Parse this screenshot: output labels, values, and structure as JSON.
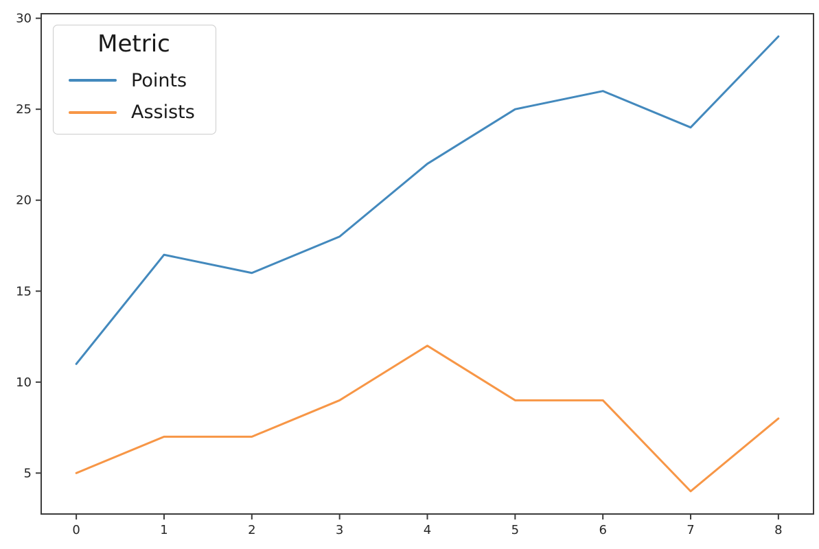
{
  "figure": {
    "background_color": "#ffffff",
    "spine_color": "#3b3b3b",
    "tick_label_color": "#262626"
  },
  "chart_data": {
    "type": "line",
    "x": [
      0,
      1,
      2,
      3,
      4,
      5,
      6,
      7,
      8
    ],
    "series": [
      {
        "name": "Points",
        "color": "#4389bd",
        "values": [
          11,
          17,
          16,
          18,
          22,
          25,
          26,
          24,
          29
        ]
      },
      {
        "name": "Assists",
        "color": "#f79646",
        "values": [
          5,
          7,
          7,
          9,
          12,
          9,
          9,
          4,
          8
        ]
      }
    ],
    "title": "",
    "xlabel": "",
    "ylabel": "",
    "xticks": [
      0,
      1,
      2,
      3,
      4,
      5,
      6,
      7,
      8
    ],
    "yticks": [
      5,
      10,
      15,
      20,
      25,
      30
    ],
    "xlim": [
      -0.4,
      8.4
    ],
    "ylim": [
      2.75,
      30.25
    ],
    "grid": false,
    "legend": {
      "title": "Metric",
      "position": "upper-left",
      "entries": [
        "Points",
        "Assists"
      ]
    }
  }
}
